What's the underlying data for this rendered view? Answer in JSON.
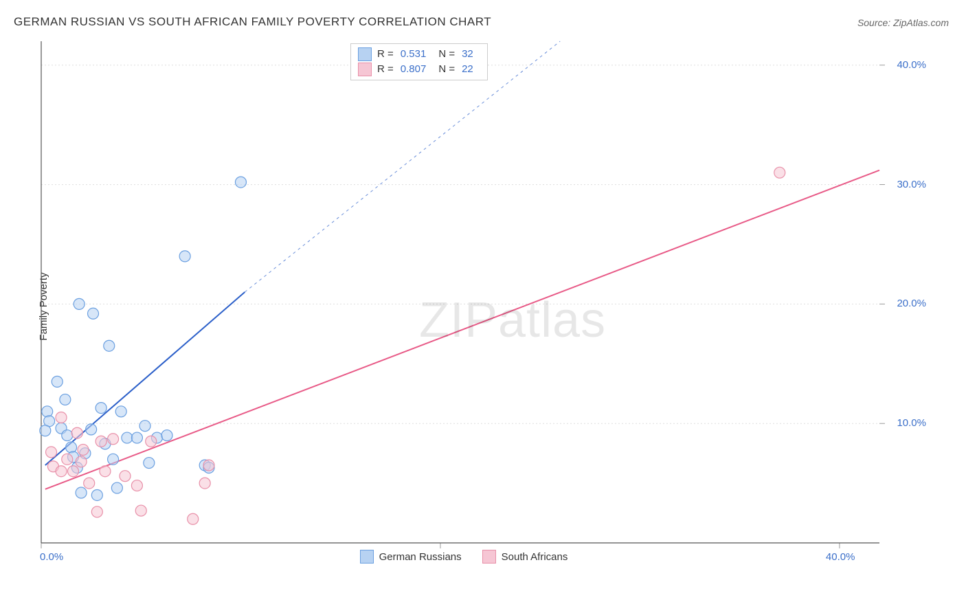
{
  "title": "GERMAN RUSSIAN VS SOUTH AFRICAN FAMILY POVERTY CORRELATION CHART",
  "source_label": "Source: ZipAtlas.com",
  "ylabel": "Family Poverty",
  "watermark_zip": "ZIP",
  "watermark_atlas": "atlas",
  "chart": {
    "type": "scatter",
    "background_color": "#ffffff",
    "grid_color": "#dddddd",
    "axis_color": "#555555",
    "tick_color": "#999999",
    "xlim": [
      0,
      42
    ],
    "ylim": [
      0,
      42
    ],
    "xticks": [
      0,
      20,
      40
    ],
    "xtick_labels": [
      "0.0%",
      "",
      "40.0%"
    ],
    "yticks": [
      10,
      20,
      30,
      40
    ],
    "ytick_labels": [
      "10.0%",
      "20.0%",
      "30.0%",
      "40.0%"
    ],
    "marker_radius": 8,
    "marker_stroke_width": 1.2,
    "legend_r": {
      "rows": [
        {
          "swatch_fill": "#b7d2f2",
          "swatch_stroke": "#6a9fe0",
          "r_label": "R =",
          "r_val": "0.531",
          "n_label": "N =",
          "n_val": "32"
        },
        {
          "swatch_fill": "#f6c6d4",
          "swatch_stroke": "#e88fa8",
          "r_label": "R =",
          "r_val": "0.807",
          "n_label": "N =",
          "n_val": "22"
        }
      ]
    },
    "legend_bottom": {
      "items": [
        {
          "swatch_fill": "#b7d2f2",
          "swatch_stroke": "#6a9fe0",
          "label": "German Russians"
        },
        {
          "swatch_fill": "#f6c6d4",
          "swatch_stroke": "#e88fa8",
          "label": "South Africans"
        }
      ]
    },
    "series": [
      {
        "name": "german_russians",
        "fill": "#b7d2f2",
        "stroke": "#6a9fe0",
        "fill_opacity": 0.55,
        "line_color": "#2b5fc9",
        "line_solid": {
          "x1": 0.2,
          "y1": 6.5,
          "x2": 10.2,
          "y2": 21.0
        },
        "line_dashed": {
          "x1": 10.2,
          "y1": 21.0,
          "x2": 26.0,
          "y2": 42.0
        },
        "line_width": 2.0,
        "points": [
          {
            "x": 0.3,
            "y": 11.0
          },
          {
            "x": 0.4,
            "y": 10.2
          },
          {
            "x": 0.2,
            "y": 9.4
          },
          {
            "x": 0.8,
            "y": 13.5
          },
          {
            "x": 1.0,
            "y": 9.6
          },
          {
            "x": 1.2,
            "y": 12.0
          },
          {
            "x": 1.3,
            "y": 9.0
          },
          {
            "x": 1.5,
            "y": 8.0
          },
          {
            "x": 1.6,
            "y": 7.2
          },
          {
            "x": 1.8,
            "y": 6.3
          },
          {
            "x": 1.9,
            "y": 20.0
          },
          {
            "x": 2.0,
            "y": 4.2
          },
          {
            "x": 2.2,
            "y": 7.5
          },
          {
            "x": 2.5,
            "y": 9.5
          },
          {
            "x": 2.6,
            "y": 19.2
          },
          {
            "x": 2.8,
            "y": 4.0
          },
          {
            "x": 3.0,
            "y": 11.3
          },
          {
            "x": 3.2,
            "y": 8.3
          },
          {
            "x": 3.4,
            "y": 16.5
          },
          {
            "x": 3.6,
            "y": 7.0
          },
          {
            "x": 3.8,
            "y": 4.6
          },
          {
            "x": 4.0,
            "y": 11.0
          },
          {
            "x": 4.3,
            "y": 8.8
          },
          {
            "x": 4.8,
            "y": 8.8
          },
          {
            "x": 5.2,
            "y": 9.8
          },
          {
            "x": 5.4,
            "y": 6.7
          },
          {
            "x": 5.8,
            "y": 8.8
          },
          {
            "x": 7.2,
            "y": 24.0
          },
          {
            "x": 8.2,
            "y": 6.5
          },
          {
            "x": 8.4,
            "y": 6.3
          },
          {
            "x": 10.0,
            "y": 30.2
          },
          {
            "x": 6.3,
            "y": 9.0
          }
        ]
      },
      {
        "name": "south_africans",
        "fill": "#f6c6d4",
        "stroke": "#e88fa8",
        "fill_opacity": 0.55,
        "line_color": "#e85a87",
        "line_solid": {
          "x1": 0.2,
          "y1": 4.5,
          "x2": 42.0,
          "y2": 31.2
        },
        "line_dashed": null,
        "line_width": 2.0,
        "points": [
          {
            "x": 0.5,
            "y": 7.6
          },
          {
            "x": 0.6,
            "y": 6.4
          },
          {
            "x": 1.0,
            "y": 10.5
          },
          {
            "x": 1.0,
            "y": 6.0
          },
          {
            "x": 1.3,
            "y": 7.0
          },
          {
            "x": 1.6,
            "y": 6.0
          },
          {
            "x": 1.8,
            "y": 9.2
          },
          {
            "x": 2.0,
            "y": 6.8
          },
          {
            "x": 2.1,
            "y": 7.8
          },
          {
            "x": 2.4,
            "y": 5.0
          },
          {
            "x": 2.8,
            "y": 2.6
          },
          {
            "x": 3.0,
            "y": 8.5
          },
          {
            "x": 3.2,
            "y": 6.0
          },
          {
            "x": 3.6,
            "y": 8.7
          },
          {
            "x": 4.2,
            "y": 5.6
          },
          {
            "x": 4.8,
            "y": 4.8
          },
          {
            "x": 5.0,
            "y": 2.7
          },
          {
            "x": 5.5,
            "y": 8.5
          },
          {
            "x": 7.6,
            "y": 2.0
          },
          {
            "x": 8.2,
            "y": 5.0
          },
          {
            "x": 8.4,
            "y": 6.5
          },
          {
            "x": 37.0,
            "y": 31.0
          }
        ]
      }
    ]
  }
}
